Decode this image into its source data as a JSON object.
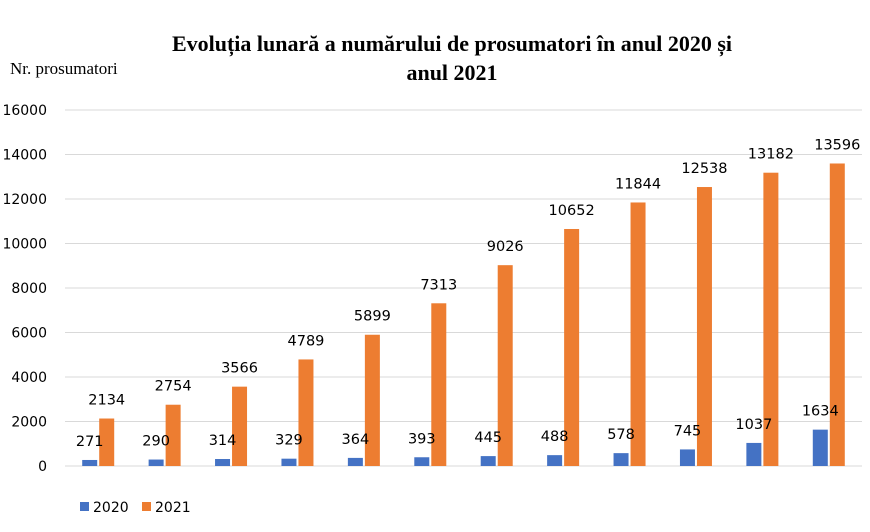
{
  "chart_data": {
    "type": "bar",
    "title_lines": [
      "Evoluția lunară a numărului de prosumatori în anul 2020 și",
      "anul 2021"
    ],
    "xlabel": "",
    "ylabel": "Nr. prosumatori",
    "ylim": [
      0,
      16000
    ],
    "yticks": [
      0,
      2000,
      4000,
      6000,
      8000,
      10000,
      12000,
      14000,
      16000
    ],
    "grid": true,
    "legend_position": "bottom-left",
    "categories": [
      "",
      "",
      "",
      "",
      "",
      "",
      "",
      "",
      "",
      "",
      "",
      ""
    ],
    "series": [
      {
        "name": "2020",
        "color": "#4472c4",
        "values": [
          271,
          290,
          314,
          329,
          364,
          393,
          445,
          488,
          578,
          745,
          1037,
          1634
        ]
      },
      {
        "name": "2021",
        "color": "#ed7d31",
        "values": [
          2134,
          2754,
          3566,
          4789,
          5899,
          7313,
          9026,
          10652,
          11844,
          12538,
          13182,
          13596
        ]
      }
    ]
  }
}
